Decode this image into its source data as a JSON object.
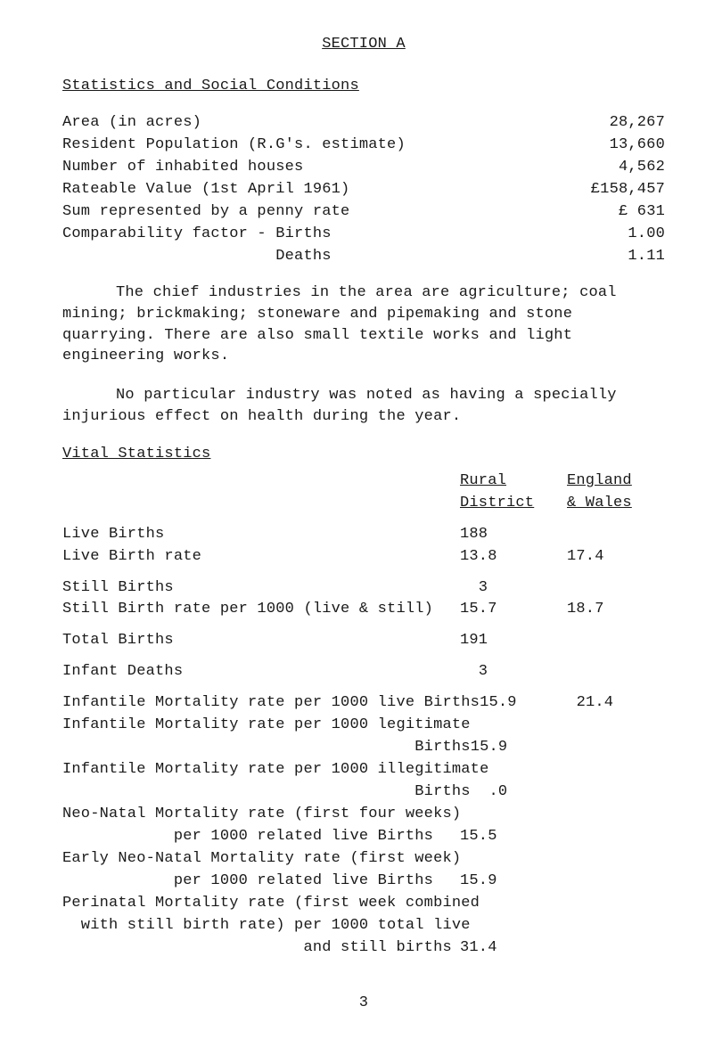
{
  "section_title": "SECTION A",
  "heading1": "Statistics and Social Conditions",
  "stats1": [
    {
      "label": "Area (in acres)",
      "value": "28,267"
    },
    {
      "label": "Resident Population (R.G's. estimate)",
      "value": "13,660"
    },
    {
      "label": "Number of inhabited houses",
      "value": "4,562"
    },
    {
      "label": "Rateable Value (1st April 1961)",
      "value": "£158,457"
    },
    {
      "label": "Sum represented by a penny rate",
      "value": "£ 631"
    },
    {
      "label": "Comparability factor - Births",
      "value": "1.00"
    },
    {
      "label": "                       Deaths",
      "value": "1.11"
    }
  ],
  "para1": "The chief industries in the area are agriculture;  coal mining;  brickmaking;  stoneware and pipemaking and stone quarrying.   There are also small textile works and light engineering works.",
  "para2": "No particular industry was noted as having a specially injurious effect on health during the year.",
  "vital_heading": "Vital Statistics",
  "col_headers": {
    "rural_l1": "Rural",
    "rural_l2": "District",
    "eng_l1": "England",
    "eng_l2": "& Wales"
  },
  "vitals": [
    {
      "label": "Live Births",
      "c1": "188",
      "c2": ""
    },
    {
      "label": "Live Birth rate",
      "c1": "13.8",
      "c2": "17.4"
    }
  ],
  "vitals_blk2": [
    {
      "label": "Still Births",
      "c1": "  3",
      "c2": ""
    },
    {
      "label": "Still Birth rate per 1000 (live & still)",
      "c1": "15.7",
      "c2": "18.7"
    }
  ],
  "vitals_blk3": [
    {
      "label": "Total Births",
      "c1": "191",
      "c2": ""
    }
  ],
  "vitals_blk4": [
    {
      "label": "Infant Deaths",
      "c1": "  3",
      "c2": ""
    }
  ],
  "vitals_blk5": [
    {
      "label": "Infantile Mortality rate per 1000 live Births",
      "c1": "15.9",
      "c2": "21.4"
    },
    {
      "label": "Infantile Mortality rate per 1000 legitimate",
      "c1": "",
      "c2": ""
    },
    {
      "label": "                                      Births",
      "c1": "15.9",
      "c2": ""
    },
    {
      "label": "Infantile Mortality rate per 1000 illegitimate",
      "c1": "",
      "c2": ""
    },
    {
      "label": "                                      Births",
      "c1": "  .0",
      "c2": ""
    },
    {
      "label": "Neo-Natal Mortality rate (first four weeks)",
      "c1": "",
      "c2": ""
    },
    {
      "label": "            per 1000 related live Births",
      "c1": "15.5",
      "c2": ""
    },
    {
      "label": "Early Neo-Natal Mortality rate (first week)",
      "c1": "",
      "c2": ""
    },
    {
      "label": "            per 1000 related live Births",
      "c1": "15.9",
      "c2": ""
    },
    {
      "label": "Perinatal Mortality rate (first week combined",
      "c1": "",
      "c2": ""
    },
    {
      "label": "  with still birth rate) per 1000 total live",
      "c1": "",
      "c2": ""
    },
    {
      "label": "                          and still births",
      "c1": "31.4",
      "c2": ""
    }
  ],
  "page_number": "3"
}
